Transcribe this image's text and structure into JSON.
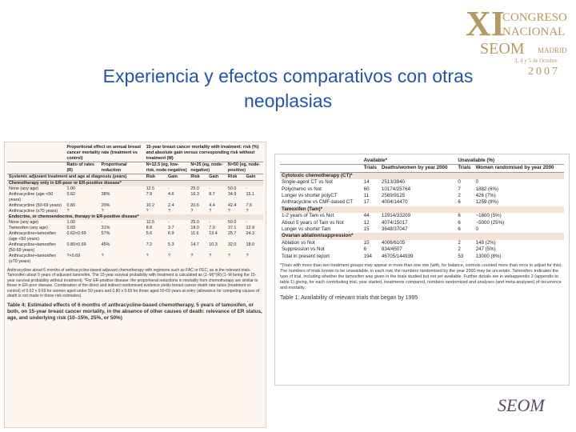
{
  "logo": {
    "numeral": "XI",
    "line1": "CONGRESO",
    "line2": "NACIONAL",
    "society": "SEOM",
    "city": "MADRID",
    "dates": "3, 4 y 5 de Octubre",
    "year": "2007"
  },
  "title": {
    "line1": "Experiencia y efectos comparativos con otras",
    "line2": "neoplasias"
  },
  "left_table": {
    "header": [
      [
        "Proportional effect on annual breast cancer mortality rate (treatment vs control)",
        "15-year breast cancer mortality with treatment: risk (%) and absolute gain versus corresponding risk without treatment (M)"
      ],
      [
        "Ratio of rates (R)",
        "Proportional reduction",
        "N=12.5 (eg, low-risk, node-negative)",
        "N=25 (eg, node-negative)",
        "N=50 (eg, node-positive)"
      ],
      [
        "Systemic adjuvant treatment and age at diagnosis (years)",
        "Risk",
        "Gain",
        "Risk",
        "Gain",
        "Risk",
        "Gain"
      ]
    ],
    "rows": [
      [
        "Chemotherapy only in ER-poor or ER-positive disease*"
      ],
      [
        "None (any age)",
        "1.00",
        "-",
        "12.5",
        "-",
        "25.0",
        "-",
        "50.0",
        "-"
      ],
      [
        "Anthracycline (age <50 years)",
        "0.62",
        "38%",
        "7.9",
        "4.6",
        "16.3",
        "8.7",
        "34.9",
        "15.1"
      ],
      [
        "Anthracycline (50-69 years)",
        "0.80",
        "20%",
        "10.2",
        "2.4",
        "20.6",
        "4.4",
        "42.4",
        "7.6"
      ],
      [
        "Anthracycline (≥70 years)",
        "?",
        "?",
        "?",
        "?",
        "?",
        "?",
        "?",
        "?"
      ],
      [
        "Endocrine, or chemoendocrine, therapy in ER-positive disease*"
      ],
      [
        "None (any age)",
        "1.00",
        "-",
        "12.5",
        "-",
        "25.0",
        "-",
        "50.0",
        "-"
      ],
      [
        "Tamoxifen (any age)",
        "0.69",
        "31%",
        "8.8",
        "3.7",
        "18.0",
        "7.0",
        "37.1",
        "12.9"
      ],
      [
        "Anthracycline+tamoxifen (age <50 years)",
        "0.62×0.69",
        "57%",
        "5.6",
        "6.9",
        "11.6",
        "13.4",
        "25.7",
        "24.3"
      ],
      [
        "Anthracycline+tamoxifen (50-69 years)",
        "0.80×0.69",
        "45%",
        "7.2",
        "5.3",
        "14.7",
        "10.3",
        "32.0",
        "18.0"
      ],
      [
        "Anthracycline+tamoxifen (≥70 years)",
        "?×0.69",
        "?",
        "?",
        "?",
        "?",
        "?",
        "?",
        "?"
      ]
    ],
    "footnote": "Anthracycline about 6 months of anthracycline-based adjuvant chemotherapy with regimens such as FAC or FEC, as in the relevant trials. Tamoxifen about 5 years of adjuvant tamoxifen. The 15-year survival probability with treatment is calculated as (1−M)^(R) (1−M being the 15-year survival probability without treatment). *For ER-positive disease: the proportional reductions in mortality from chemotherapy are similar to those in ER-poor disease. Combination of the direct and indirect randomised evidence yields breast cancer death rate ratios (treatment vs control) of 0.62 x 0.69 for women aged under 50 years and 0.80 x 0.69 for those aged 50-69 years at entry (allowance for competing causes of death is not made in these risk estimates).",
    "caption": "Table 4: Estimated effects of 6 months of anthracycline-based chemotherapy, 5 years of tamoxifen, or both, on 15-year breast cancer mortality, in the absence of other causes of death: relevance of ER status, age, and underlying risk (10–15%, 25%, or 50%)"
  },
  "right_table": {
    "header": [
      [
        "Available*",
        "Unavailable (%)"
      ],
      [
        "Trials",
        "Deaths/women by year 2000",
        "Trials",
        "Women randomised by year 2000"
      ]
    ],
    "rows": [
      [
        "Cytotoxic chemotherapy (CT)*"
      ],
      [
        "Single-agent CT vs Not",
        "14",
        "2513/3940",
        "0",
        "0"
      ],
      [
        "Polychemo vs Not",
        "60",
        "10174/25764",
        "7",
        "1882 (6%)"
      ],
      [
        "Longer vs shorter polyCT",
        "11",
        "2569/9125",
        "2",
        "426 (7%)"
      ],
      [
        "Anthracycline vs CMF-based CT",
        "17",
        "4004/14470",
        "6",
        "1259 (8%)"
      ],
      [
        "Tamoxifen (Tam)*"
      ],
      [
        "1-2 years of Tam vs Not",
        "44",
        "12914/33209",
        "6",
        "~1600 (5%)"
      ],
      [
        "About 5 years of Tam vs Not",
        "12",
        "4074/15017",
        "6",
        "~5000 (25%)"
      ],
      [
        "Longer vs shorter Tam",
        "15",
        "3848/37047",
        "6",
        "0"
      ],
      [
        "Ovarian ablation/suppression*"
      ],
      [
        "Ablation vs Not",
        "15",
        "4006/6105",
        "2",
        "148 (2%)"
      ],
      [
        "Suppression vs Not",
        "6",
        "834/4507",
        "2",
        "247 (5%)"
      ],
      [
        "Total in present report",
        "194",
        "46705/144939",
        "53",
        "13000 (8%)"
      ]
    ],
    "footnote": "*Trials with more than two treatment groups may appear in more than one row (with, for balance, controls counted more than once to adjust for this). The numbers of trials known to be unavailable, in each row, the numbers randomised by the year 2000 may be uncertain. Tamoxifen: indicates the type of trial, including whether the tamoxifen was given in the trials studied but not yet available. Further details are in webappendix 2 (appendix to table 1) giving, for each contributing trial, year started, treatments compared, numbers randomised and analyses (and meta-analyses) of recurrence and mortality.",
    "caption": "Table 1: Availability of relevant trials that began by 1995"
  },
  "corner_logo": "SEOM"
}
